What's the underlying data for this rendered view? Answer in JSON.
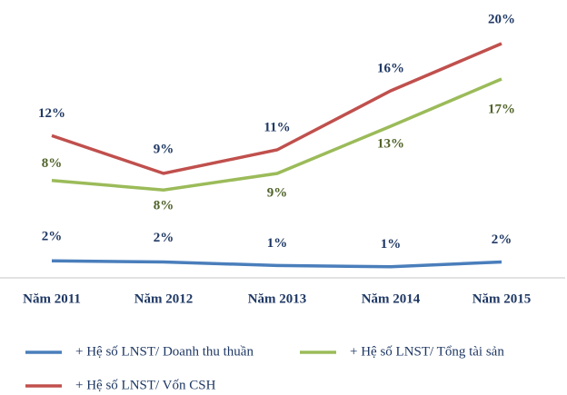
{
  "chart_data": {
    "type": "line",
    "categories": [
      "Năm 2011",
      "Năm 2012",
      "Năm 2013",
      "Năm 2014",
      "Năm 2015"
    ],
    "series": [
      {
        "name": "+ Hệ số LNST/ Doanh thu thuần",
        "color": "#4a7ebb",
        "values": [
          1.6,
          1.5,
          1.2,
          1.1,
          1.5
        ],
        "value_labels": [
          "2%",
          "2%",
          "1%",
          "1%",
          "2%"
        ]
      },
      {
        "name": "+ Hệ số LNST/ Tổng tài sản",
        "color": "#9bbb59",
        "values": [
          8.4,
          7.6,
          9,
          13,
          17
        ],
        "value_labels": [
          "8%",
          "8%",
          "9%",
          "13%",
          "17%"
        ]
      },
      {
        "name": "+ Hệ số LNST/ Vốn CSH",
        "color": "#c0504d",
        "values": [
          12.2,
          9,
          11,
          16,
          20
        ],
        "value_labels": [
          "12%",
          "9%",
          "11%",
          "16%",
          "20%"
        ]
      }
    ],
    "ylim": [
      0,
      20
    ]
  }
}
